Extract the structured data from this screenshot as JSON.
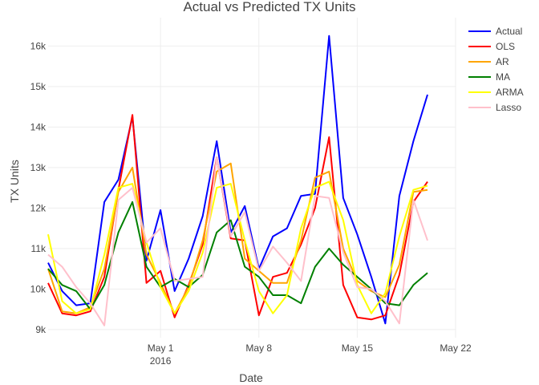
{
  "chart_data": {
    "type": "line",
    "title": "Actual vs Predicted TX Units",
    "xlabel": "Date",
    "ylabel": "TX Units",
    "x_start": "2016-04-23",
    "x_end": "2016-05-22",
    "xlim": [
      "2016-04-23",
      "2016-05-22"
    ],
    "ylim": [
      8800,
      16700
    ],
    "grid": true,
    "legend_position": "top-right",
    "x_ticks": [
      {
        "date": "2016-05-01",
        "label": "May 1",
        "sublabel": "2016"
      },
      {
        "date": "2016-05-08",
        "label": "May 8",
        "sublabel": ""
      },
      {
        "date": "2016-05-15",
        "label": "May 15",
        "sublabel": ""
      },
      {
        "date": "2016-05-22",
        "label": "May 22",
        "sublabel": ""
      }
    ],
    "y_ticks": [
      {
        "value": 9000,
        "label": "9k"
      },
      {
        "value": 10000,
        "label": "10k"
      },
      {
        "value": 11000,
        "label": "11k"
      },
      {
        "value": 12000,
        "label": "12k"
      },
      {
        "value": 13000,
        "label": "13k"
      },
      {
        "value": 14000,
        "label": "14k"
      },
      {
        "value": 15000,
        "label": "15k"
      },
      {
        "value": 16000,
        "label": "16k"
      }
    ],
    "series": [
      {
        "name": "Actual",
        "color": "#0000ff",
        "values": [
          10650,
          9950,
          9600,
          9650,
          12150,
          12700,
          14250,
          10700,
          11950,
          9950,
          10750,
          11800,
          13650,
          11400,
          12050,
          10500,
          11300,
          11500,
          12300,
          12350,
          16250,
          12250,
          11350,
          10300,
          9150,
          12300,
          13650,
          14800
        ]
      },
      {
        "name": "OLS",
        "color": "#ff0000",
        "values": [
          10150,
          9400,
          9350,
          9450,
          10300,
          12450,
          14300,
          10150,
          10450,
          9300,
          10100,
          11100,
          13250,
          11250,
          11200,
          9350,
          10300,
          10400,
          11100,
          12000,
          13750,
          10100,
          9300,
          9250,
          9350,
          10350,
          12150,
          12650
        ]
      },
      {
        "name": "AR",
        "color": "#ffa500",
        "values": [
          10500,
          9450,
          9400,
          9550,
          10500,
          12400,
          13000,
          10850,
          10150,
          9400,
          10050,
          11200,
          12900,
          13100,
          10750,
          10450,
          10150,
          10150,
          11200,
          12750,
          12900,
          11000,
          10200,
          9950,
          9800,
          10600,
          12400,
          12450
        ]
      },
      {
        "name": "MA",
        "color": "#008000",
        "values": [
          10500,
          10100,
          9950,
          9500,
          10100,
          11400,
          12150,
          10550,
          10050,
          10250,
          10050,
          10350,
          11400,
          11700,
          10550,
          10300,
          9850,
          9850,
          9650,
          10550,
          11000,
          10600,
          10300,
          10000,
          9650,
          9600,
          10100,
          10400
        ]
      },
      {
        "name": "ARMA",
        "color": "#ffff00",
        "values": [
          11350,
          9700,
          9400,
          9500,
          10850,
          12500,
          12600,
          11150,
          10050,
          9400,
          9950,
          10900,
          12500,
          12600,
          11200,
          9950,
          9400,
          9850,
          11500,
          12500,
          12650,
          11700,
          10100,
          9400,
          9900,
          11300,
          12450,
          12550
        ]
      },
      {
        "name": "Lasso",
        "color": "#ffc0cb",
        "values": [
          10850,
          10550,
          10050,
          9650,
          9100,
          12200,
          12500,
          11150,
          11500,
          10200,
          10250,
          10300,
          13250,
          11300,
          11900,
          10450,
          11050,
          10650,
          10200,
          12300,
          12250,
          10900,
          10050,
          10000,
          9700,
          9150,
          12200,
          11200
        ]
      }
    ]
  }
}
